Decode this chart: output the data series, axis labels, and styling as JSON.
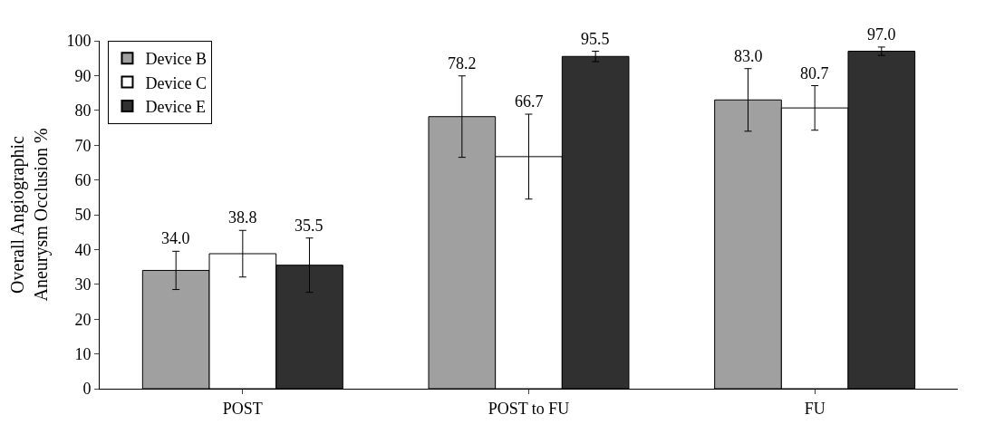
{
  "chart_data": {
    "type": "bar",
    "ylabel": "Overall Angiographic\nAneurysm Occlusion %",
    "categories": [
      "POST",
      "POST to FU",
      "FU"
    ],
    "series": [
      {
        "name": "Device B",
        "color": "#a0a0a0",
        "values": [
          34.0,
          78.2,
          83.0
        ],
        "value_labels": [
          "34.0",
          "78.2",
          "83.0"
        ],
        "errors": [
          5.5,
          11.7,
          9.0
        ]
      },
      {
        "name": "Device C",
        "color": "#ffffff",
        "values": [
          38.8,
          66.7,
          80.7
        ],
        "value_labels": [
          "38.8",
          "66.7",
          "80.7"
        ],
        "errors": [
          6.7,
          12.2,
          6.4
        ]
      },
      {
        "name": "Device E",
        "color": "#303030",
        "values": [
          35.5,
          95.5,
          97.0
        ],
        "value_labels": [
          "35.5",
          "95.5",
          "97.0"
        ],
        "errors": [
          7.8,
          1.5,
          1.2
        ]
      }
    ],
    "ylim": [
      0,
      100
    ],
    "yticks": [
      0,
      10,
      20,
      30,
      40,
      50,
      60,
      70,
      80,
      90,
      100
    ],
    "legend": "top left"
  }
}
